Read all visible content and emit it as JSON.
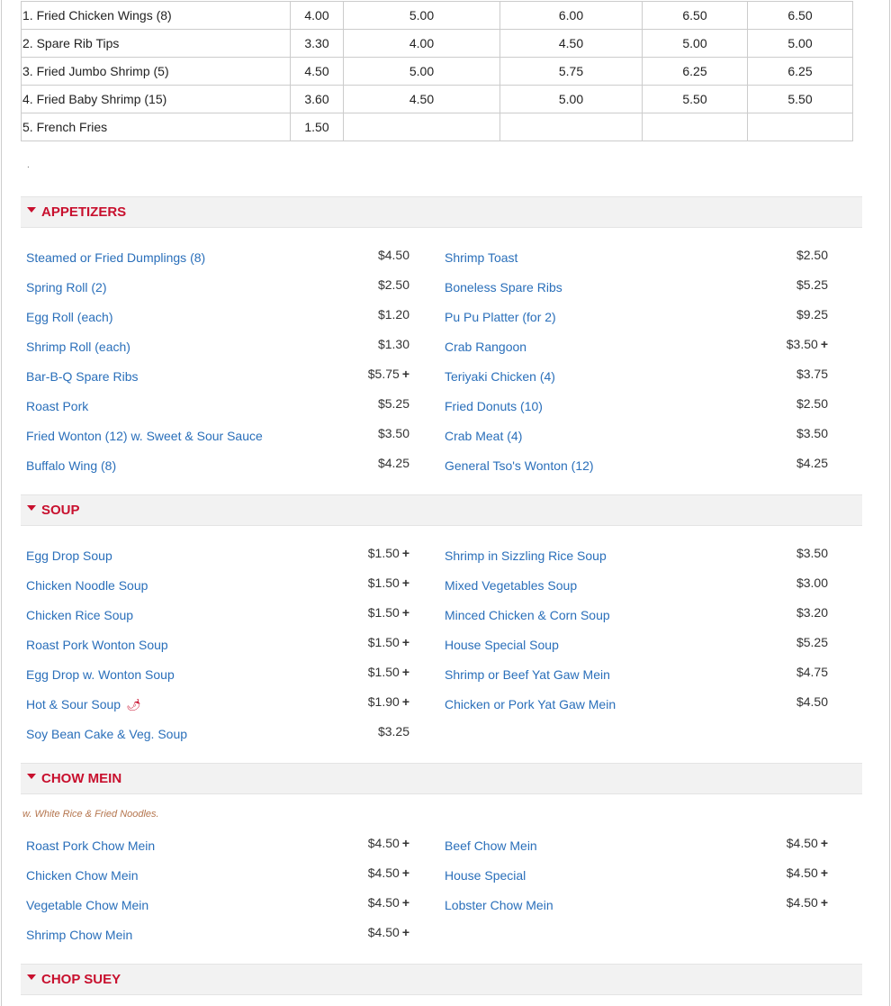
{
  "price_table": [
    [
      "1. Fried Chicken Wings (8)",
      "4.00",
      "5.00",
      "6.00",
      "6.50",
      "6.50"
    ],
    [
      "2. Spare Rib Tips",
      "3.30",
      "4.00",
      "4.50",
      "5.00",
      "5.00"
    ],
    [
      "3. Fried Jumbo Shrimp (5)",
      "4.50",
      "5.00",
      "5.75",
      "6.25",
      "6.25"
    ],
    [
      "4. Fried Baby Shrimp (15)",
      "3.60",
      "4.50",
      "5.00",
      "5.50",
      "5.50"
    ],
    [
      "5. French Fries",
      "1.50",
      "",
      "",
      "",
      ""
    ]
  ],
  "dot": ".",
  "colors": {
    "accent": "#c8102e",
    "link": "#2a6fba",
    "header_bg": "#f2f2f2",
    "note": "#b5764f"
  },
  "sections": [
    {
      "title": "APPETIZERS",
      "note": "",
      "items": [
        {
          "name": "Steamed or Fried Dumplings (8)",
          "price": "$4.50",
          "plus": ""
        },
        {
          "name": "Shrimp Toast",
          "price": "$2.50",
          "plus": ""
        },
        {
          "name": "Spring Roll (2)",
          "price": "$2.50",
          "plus": ""
        },
        {
          "name": "Boneless Spare Ribs",
          "price": "$5.25",
          "plus": ""
        },
        {
          "name": "Egg Roll (each)",
          "price": "$1.20",
          "plus": ""
        },
        {
          "name": "Pu Pu Platter (for 2)",
          "price": "$9.25",
          "plus": ""
        },
        {
          "name": "Shrimp Roll (each)",
          "price": "$1.30",
          "plus": ""
        },
        {
          "name": "Crab Rangoon",
          "price": "$3.50",
          "plus": "+"
        },
        {
          "name": "Bar-B-Q Spare Ribs",
          "price": "$5.75",
          "plus": "+"
        },
        {
          "name": "Teriyaki Chicken (4)",
          "price": "$3.75",
          "plus": ""
        },
        {
          "name": "Roast Pork",
          "price": "$5.25",
          "plus": ""
        },
        {
          "name": "Fried Donuts (10)",
          "price": "$2.50",
          "plus": ""
        },
        {
          "name": "Fried Wonton (12) w. Sweet & Sour Sauce",
          "price": "$3.50",
          "plus": ""
        },
        {
          "name": "Crab Meat (4)",
          "price": "$3.50",
          "plus": ""
        },
        {
          "name": "Buffalo Wing (8)",
          "price": "$4.25",
          "plus": ""
        },
        {
          "name": "General Tso's Wonton (12)",
          "price": "$4.25",
          "plus": ""
        }
      ]
    },
    {
      "title": "SOUP",
      "note": "",
      "items": [
        {
          "name": "Egg Drop Soup",
          "price": "$1.50",
          "plus": "+"
        },
        {
          "name": "Shrimp in Sizzling Rice Soup",
          "price": "$3.50",
          "plus": ""
        },
        {
          "name": "Chicken Noodle Soup",
          "price": "$1.50",
          "plus": "+"
        },
        {
          "name": "Mixed Vegetables Soup",
          "price": "$3.00",
          "plus": ""
        },
        {
          "name": "Chicken Rice Soup",
          "price": "$1.50",
          "plus": "+"
        },
        {
          "name": "Minced Chicken & Corn Soup",
          "price": "$3.20",
          "plus": ""
        },
        {
          "name": "Roast Pork Wonton Soup",
          "price": "$1.50",
          "plus": "+"
        },
        {
          "name": "House Special Soup",
          "price": "$5.25",
          "plus": ""
        },
        {
          "name": "Egg Drop w. Wonton Soup",
          "price": "$1.50",
          "plus": "+"
        },
        {
          "name": "Shrimp or Beef Yat Gaw Mein",
          "price": "$4.75",
          "plus": ""
        },
        {
          "name": "Hot & Sour Soup",
          "price": "$1.90",
          "plus": "+",
          "icon": "chili-pepper-icon"
        },
        {
          "name": "Chicken or Pork Yat Gaw Mein",
          "price": "$4.50",
          "plus": ""
        },
        {
          "name": "Soy Bean Cake & Veg. Soup",
          "price": "$3.25",
          "plus": ""
        }
      ]
    },
    {
      "title": "CHOW MEIN",
      "note": "w. White Rice & Fried Noodles.",
      "items": [
        {
          "name": "Roast Pork Chow Mein",
          "price": "$4.50",
          "plus": "+"
        },
        {
          "name": "Beef Chow Mein",
          "price": "$4.50",
          "plus": "+"
        },
        {
          "name": "Chicken Chow Mein",
          "price": "$4.50",
          "plus": "+"
        },
        {
          "name": "House Special",
          "price": "$4.50",
          "plus": "+"
        },
        {
          "name": "Vegetable Chow Mein",
          "price": "$4.50",
          "plus": "+"
        },
        {
          "name": "Lobster Chow Mein",
          "price": "$4.50",
          "plus": "+"
        },
        {
          "name": "Shrimp Chow Mein",
          "price": "$4.50",
          "plus": "+"
        }
      ]
    },
    {
      "title": "CHOP SUEY",
      "note": "",
      "items": []
    }
  ]
}
